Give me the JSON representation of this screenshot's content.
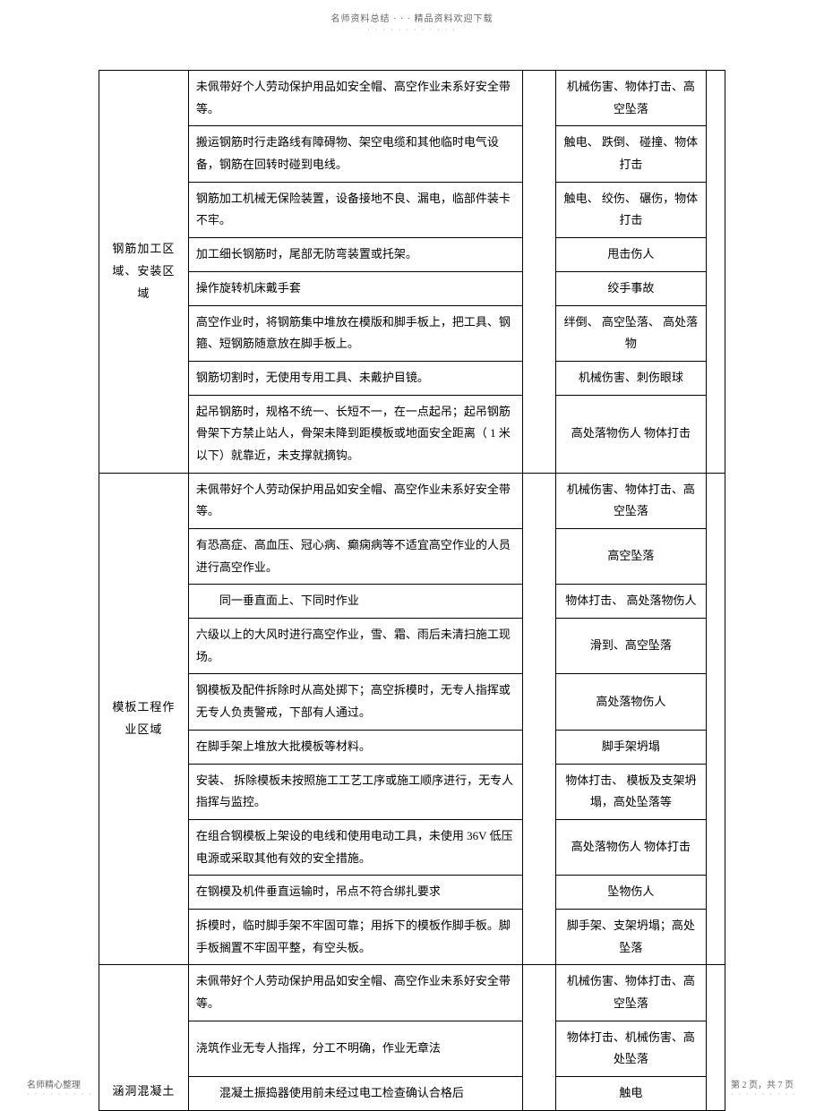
{
  "header": {
    "title": "名师资料总结 · · · 精品资料欢迎下载",
    "dots": "· · · · · · · · · · · ·"
  },
  "footer": {
    "left": "名师精心整理",
    "leftDots": "· · · · · · · · ·",
    "right": "第 2 页，共 7 页",
    "rightDots": "· · · · · · · · ·"
  },
  "groups": [
    {
      "category": "钢筋加工区域、安装区域",
      "rows": [
        {
          "desc": "未佩带好个人劳动保护用品如安全帽、高空作业未系好安全带等。",
          "risk": "机械伤害、物体打击、高空坠落"
        },
        {
          "desc": "搬运钢筋时行走路线有障碍物、架空电缆和其他临时电气设备，钢筋在回转时碰到电线。",
          "risk": "触电、 跌倒、 碰撞、物体打击"
        },
        {
          "desc": "钢筋加工机械无保险装置，设备接地不良、漏电，临部件装卡不牢。",
          "risk": "触电、 绞伤、 碾伤，物体打击"
        },
        {
          "desc": "加工细长钢筋时，尾部无防弯装置或托架。",
          "risk": "甩击伤人"
        },
        {
          "desc": "操作旋转机床戴手套",
          "risk": "绞手事故"
        },
        {
          "desc": "高空作业时，将钢筋集中堆放在模版和脚手板上，把工具、钢箍、短钢筋随意放在脚手板上。",
          "risk": "绊倒、 高空坠落、 高处落物"
        },
        {
          "desc": "钢筋切割时，无使用专用工具、未戴护目镜。",
          "risk": "机械伤害、刺伤眼球"
        },
        {
          "desc": "起吊钢筋时，规格不统一、长短不一，在一点起吊；起吊钢筋骨架下方禁止站人，骨架未降到距模板或地面安全距离（ 1 米以下）就靠近，未支撑就摘钩。",
          "risk": "高处落物伤人 物体打击"
        }
      ]
    },
    {
      "category": "模板工程作业区域",
      "rows": [
        {
          "desc": "未佩带好个人劳动保护用品如安全帽、高空作业未系好安全带等。",
          "risk": "机械伤害、物体打击、高空坠落"
        },
        {
          "desc": "有恐高症、高血压、冠心病、癫痫病等不适宜高空作业的人员进行高空作业。",
          "risk": "高空坠落"
        },
        {
          "desc": "　　同一垂直面上、下同时作业",
          "risk": "物体打击、 高处落物伤人"
        },
        {
          "desc": "六级以上的大风时进行高空作业，雪、霜、雨后未清扫施工现场。",
          "risk": "滑到、高空坠落"
        },
        {
          "desc": "钢模板及配件拆除时从高处掷下；高空拆模时，无专人指挥或无专人负责警戒，下部有人通过。",
          "risk": "高处落物伤人"
        },
        {
          "desc": "在脚手架上堆放大批模板等材料。",
          "risk": "脚手架坍塌"
        },
        {
          "desc": "安装、 拆除模板未按照施工工艺工序或施工顺序进行，无专人指挥与监控。",
          "risk": "物体打击、 模板及支架坍塌，高处坠落等"
        },
        {
          "desc": "在组合钢模板上架设的电线和使用电动工具，未使用 36V 低压电源或采取其他有效的安全措施。",
          "risk": "高处落物伤人 物体打击"
        },
        {
          "desc": "在钢模及机件垂直运输时，吊点不符合绑扎要求",
          "risk": "坠物伤人"
        },
        {
          "desc": "拆模时，临时脚手架不牢固可靠；用拆下的模板作脚手板。脚手板搁置不牢固平整，有空头板。",
          "risk": "脚手架、支架坍塌；高处坠落"
        }
      ]
    },
    {
      "category": "涵洞混凝土",
      "rows": [
        {
          "desc": "未佩带好个人劳动保护用品如安全帽、高空作业未系好安全带等。",
          "risk": "机械伤害、物体打击、高空坠落"
        },
        {
          "desc": "浇筑作业无专人指挥，分工不明确，作业无章法",
          "risk": "物体打击、机械伤害、高处坠落"
        },
        {
          "desc": "　　混凝土振捣器使用前未经过电工检查确认合格后",
          "risk": "触电"
        }
      ]
    }
  ]
}
